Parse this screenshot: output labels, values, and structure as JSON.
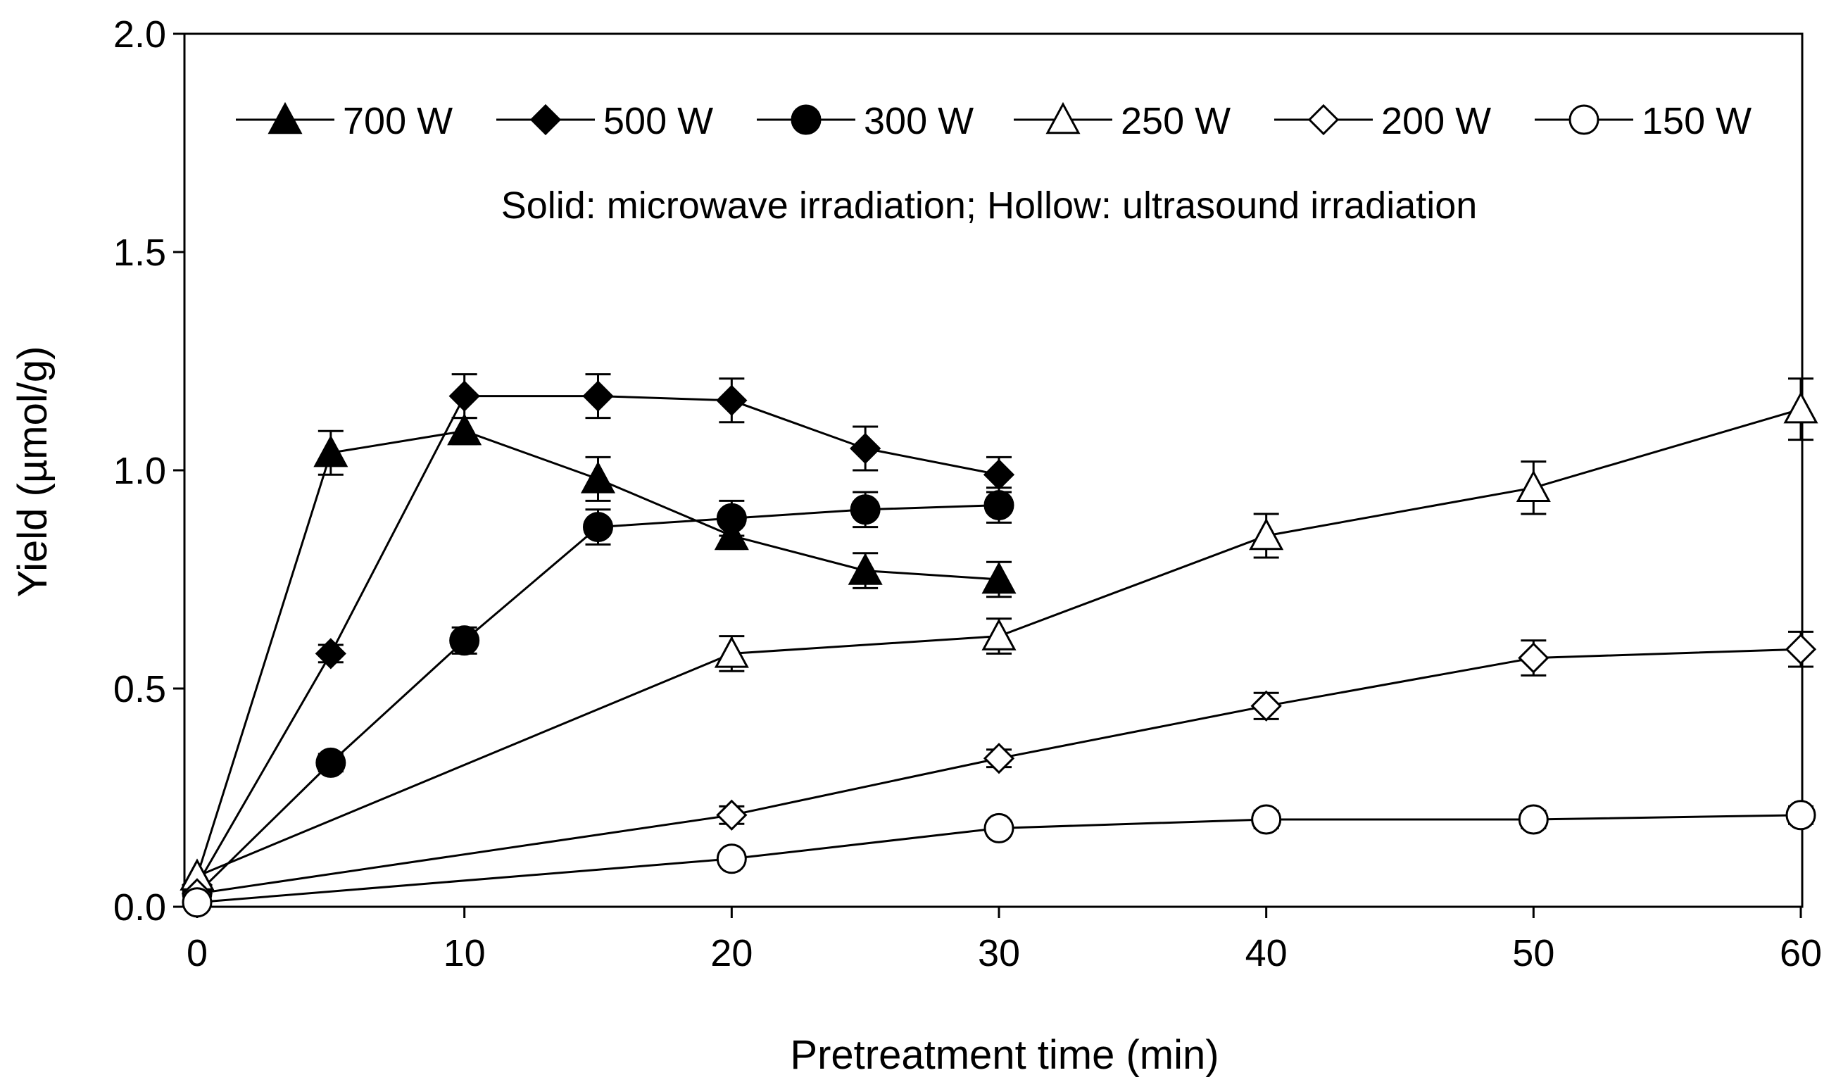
{
  "chart_data": {
    "type": "line",
    "title": "",
    "xlabel": "Pretreatment time (min)",
    "ylabel": "Yield (µmol/g)",
    "xlim": [
      0,
      60
    ],
    "ylim": [
      0,
      2.0
    ],
    "xticks": [
      0,
      10,
      20,
      30,
      40,
      50,
      60
    ],
    "yticks": [
      0.0,
      0.5,
      1.0,
      1.5,
      2.0
    ],
    "xtick_labels": [
      "0",
      "10",
      "20",
      "30",
      "40",
      "50",
      "60"
    ],
    "ytick_labels": [
      "0.0",
      "0.5",
      "1.0",
      "1.5",
      "2.0"
    ],
    "grid": false,
    "legend_position": "top",
    "annotation": "Solid: microwave irradiation; Hollow: ultrasound irradiation",
    "series": [
      {
        "name": "700 W",
        "marker": "triangle",
        "filled": true,
        "x": [
          0,
          5,
          10,
          15,
          20,
          25,
          30
        ],
        "y": [
          0.07,
          1.04,
          1.09,
          0.98,
          0.85,
          0.77,
          0.75
        ],
        "err": [
          0.0,
          0.05,
          0.03,
          0.05,
          0.03,
          0.04,
          0.04
        ]
      },
      {
        "name": "500 W",
        "marker": "diamond",
        "filled": true,
        "x": [
          0,
          5,
          10,
          15,
          20,
          25,
          30
        ],
        "y": [
          0.05,
          0.58,
          1.17,
          1.17,
          1.16,
          1.05,
          0.99
        ],
        "err": [
          0.0,
          0.02,
          0.05,
          0.05,
          0.05,
          0.05,
          0.04
        ]
      },
      {
        "name": "300 W",
        "marker": "circle",
        "filled": true,
        "x": [
          0,
          5,
          10,
          15,
          20,
          25,
          30
        ],
        "y": [
          0.03,
          0.33,
          0.61,
          0.87,
          0.89,
          0.91,
          0.92
        ],
        "err": [
          0.0,
          0.02,
          0.03,
          0.04,
          0.04,
          0.04,
          0.04
        ]
      },
      {
        "name": "250 W",
        "marker": "triangle",
        "filled": false,
        "x": [
          0,
          20,
          30,
          40,
          50,
          60
        ],
        "y": [
          0.07,
          0.58,
          0.62,
          0.85,
          0.96,
          1.14
        ],
        "err": [
          0.0,
          0.04,
          0.04,
          0.05,
          0.06,
          0.07
        ]
      },
      {
        "name": "200 W",
        "marker": "diamond",
        "filled": false,
        "x": [
          0,
          20,
          30,
          40,
          50,
          60
        ],
        "y": [
          0.03,
          0.21,
          0.34,
          0.46,
          0.57,
          0.59
        ],
        "err": [
          0.0,
          0.02,
          0.02,
          0.03,
          0.04,
          0.04
        ]
      },
      {
        "name": "150 W",
        "marker": "circle",
        "filled": false,
        "x": [
          0,
          20,
          30,
          40,
          50,
          60
        ],
        "y": [
          0.01,
          0.11,
          0.18,
          0.2,
          0.2,
          0.21
        ],
        "err": [
          0.0,
          0.01,
          0.01,
          0.02,
          0.02,
          0.02
        ]
      }
    ]
  }
}
